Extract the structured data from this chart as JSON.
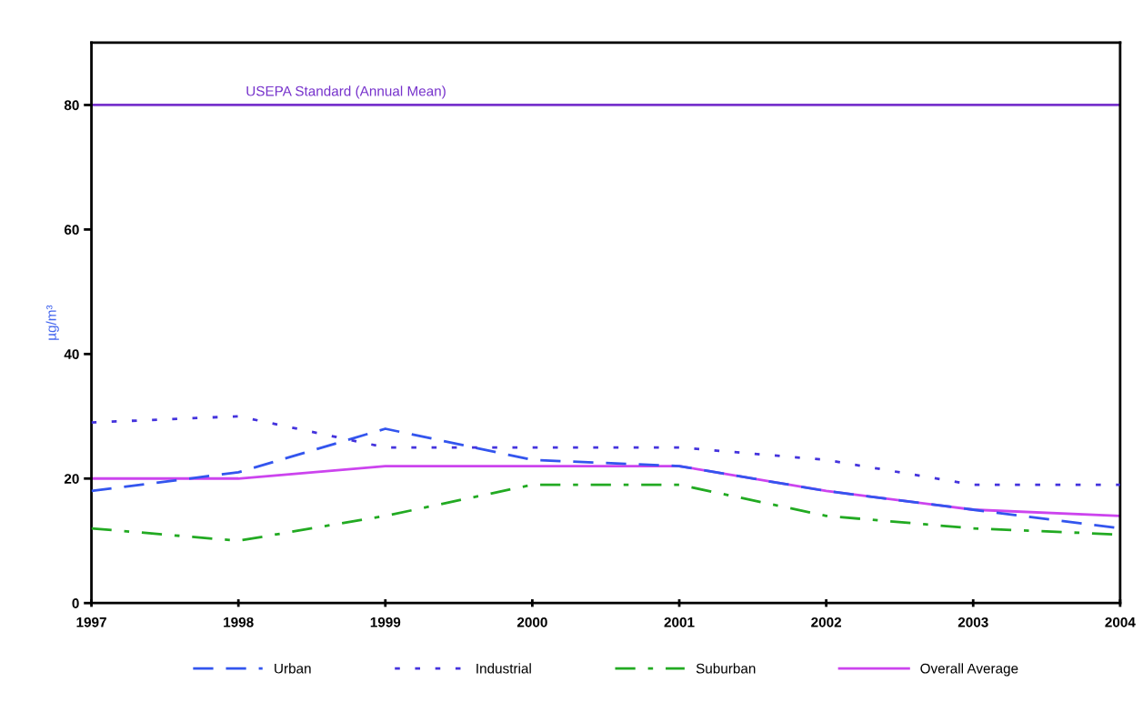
{
  "chart_data": {
    "type": "line",
    "ylabel": "µg/m³",
    "x": [
      1997,
      1998,
      1999,
      2000,
      2001,
      2002,
      2003,
      2004
    ],
    "xlim": [
      1997,
      2004
    ],
    "xticks": [
      1997,
      1998,
      1999,
      2000,
      2001,
      2002,
      2003,
      2004
    ],
    "ylim": [
      0,
      90
    ],
    "yticks": [
      0,
      20,
      40,
      60,
      80
    ],
    "series": [
      {
        "name": "Urban",
        "color": "#3355ee",
        "line_style": "dashed",
        "values": [
          18,
          21,
          28,
          23,
          22,
          18,
          15,
          12
        ]
      },
      {
        "name": "Industrial",
        "color": "#4433dd",
        "line_style": "dotted",
        "values": [
          29,
          30,
          25,
          25,
          25,
          23,
          19,
          19
        ]
      },
      {
        "name": "Suburban",
        "color": "#22aa22",
        "line_style": "dashdot",
        "values": [
          12,
          10,
          14,
          19,
          19,
          14,
          12,
          11
        ]
      },
      {
        "name": "Overall Average",
        "color": "#cc44ee",
        "line_style": "solid",
        "values": [
          20,
          20,
          22,
          22,
          22,
          18,
          15,
          14
        ]
      }
    ],
    "ref_lines": [
      {
        "axis": "y",
        "value": 80,
        "label": "USEPA Standard (Annual Mean)",
        "color": "#7733cc"
      }
    ],
    "grid": false,
    "legend": "bottom",
    "marker": "none"
  }
}
